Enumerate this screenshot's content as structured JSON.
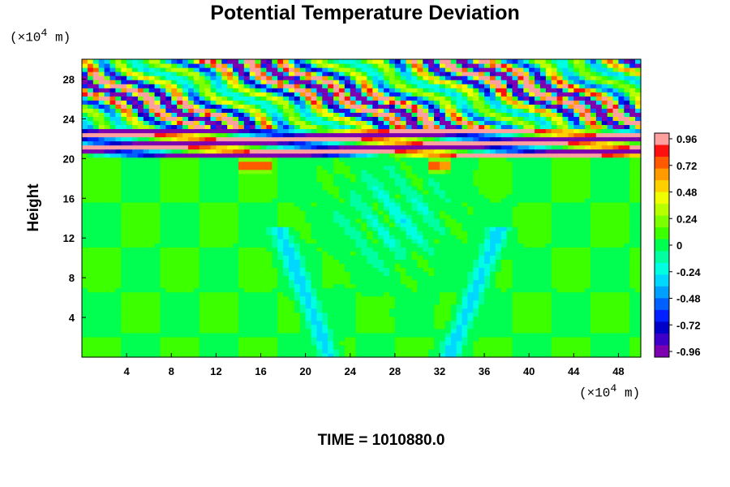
{
  "chart_data": {
    "type": "heatmap",
    "title": "Potential Temperature Deviation",
    "ylabel": "Height",
    "x_units": "(×10",
    "x_units_exp": "4",
    "x_units_tail": " m)",
    "y_units": "(×10",
    "y_units_exp": "4",
    "y_units_tail": " m)",
    "x_ticks": [
      "4",
      "8",
      "12",
      "16",
      "20",
      "24",
      "28",
      "32",
      "36",
      "40",
      "44",
      "48"
    ],
    "y_ticks": [
      "4",
      "8",
      "12",
      "16",
      "20",
      "24",
      "28"
    ],
    "xlim": [
      0,
      50
    ],
    "ylim": [
      0,
      30
    ],
    "colorbar": {
      "tick_labels": [
        "0.96",
        "0.72",
        "0.48",
        "0.24",
        "0",
        "-0.24",
        "-0.48",
        "-0.72",
        "-0.96"
      ],
      "range": [
        -0.96,
        0.96
      ],
      "colors": [
        "#ff9fa0",
        "#ff1010",
        "#ff5a00",
        "#ff9a00",
        "#ffd000",
        "#f0ff00",
        "#b8ff00",
        "#7cff00",
        "#3cff00",
        "#00ff50",
        "#00ffa0",
        "#00ffe0",
        "#00d8ff",
        "#00a0ff",
        "#0060ff",
        "#0020ff",
        "#0000c8",
        "#3c00c8",
        "#7c00b0"
      ]
    },
    "field_regions": [
      {
        "y_range": [
          0,
          20
        ],
        "dominant_value": 0.05,
        "description": "near zero"
      },
      {
        "y_range": [
          20,
          23
        ],
        "pattern": "alternating bands ±0.96"
      },
      {
        "y_range": [
          23,
          30
        ],
        "pattern": "wave pattern ±0.96"
      }
    ],
    "features": [
      {
        "type": "plume",
        "x_center": 28,
        "y_top": 20,
        "sign": "negative",
        "amplitude": -0.3
      }
    ]
  },
  "time_label": "TIME = 1010880.0"
}
